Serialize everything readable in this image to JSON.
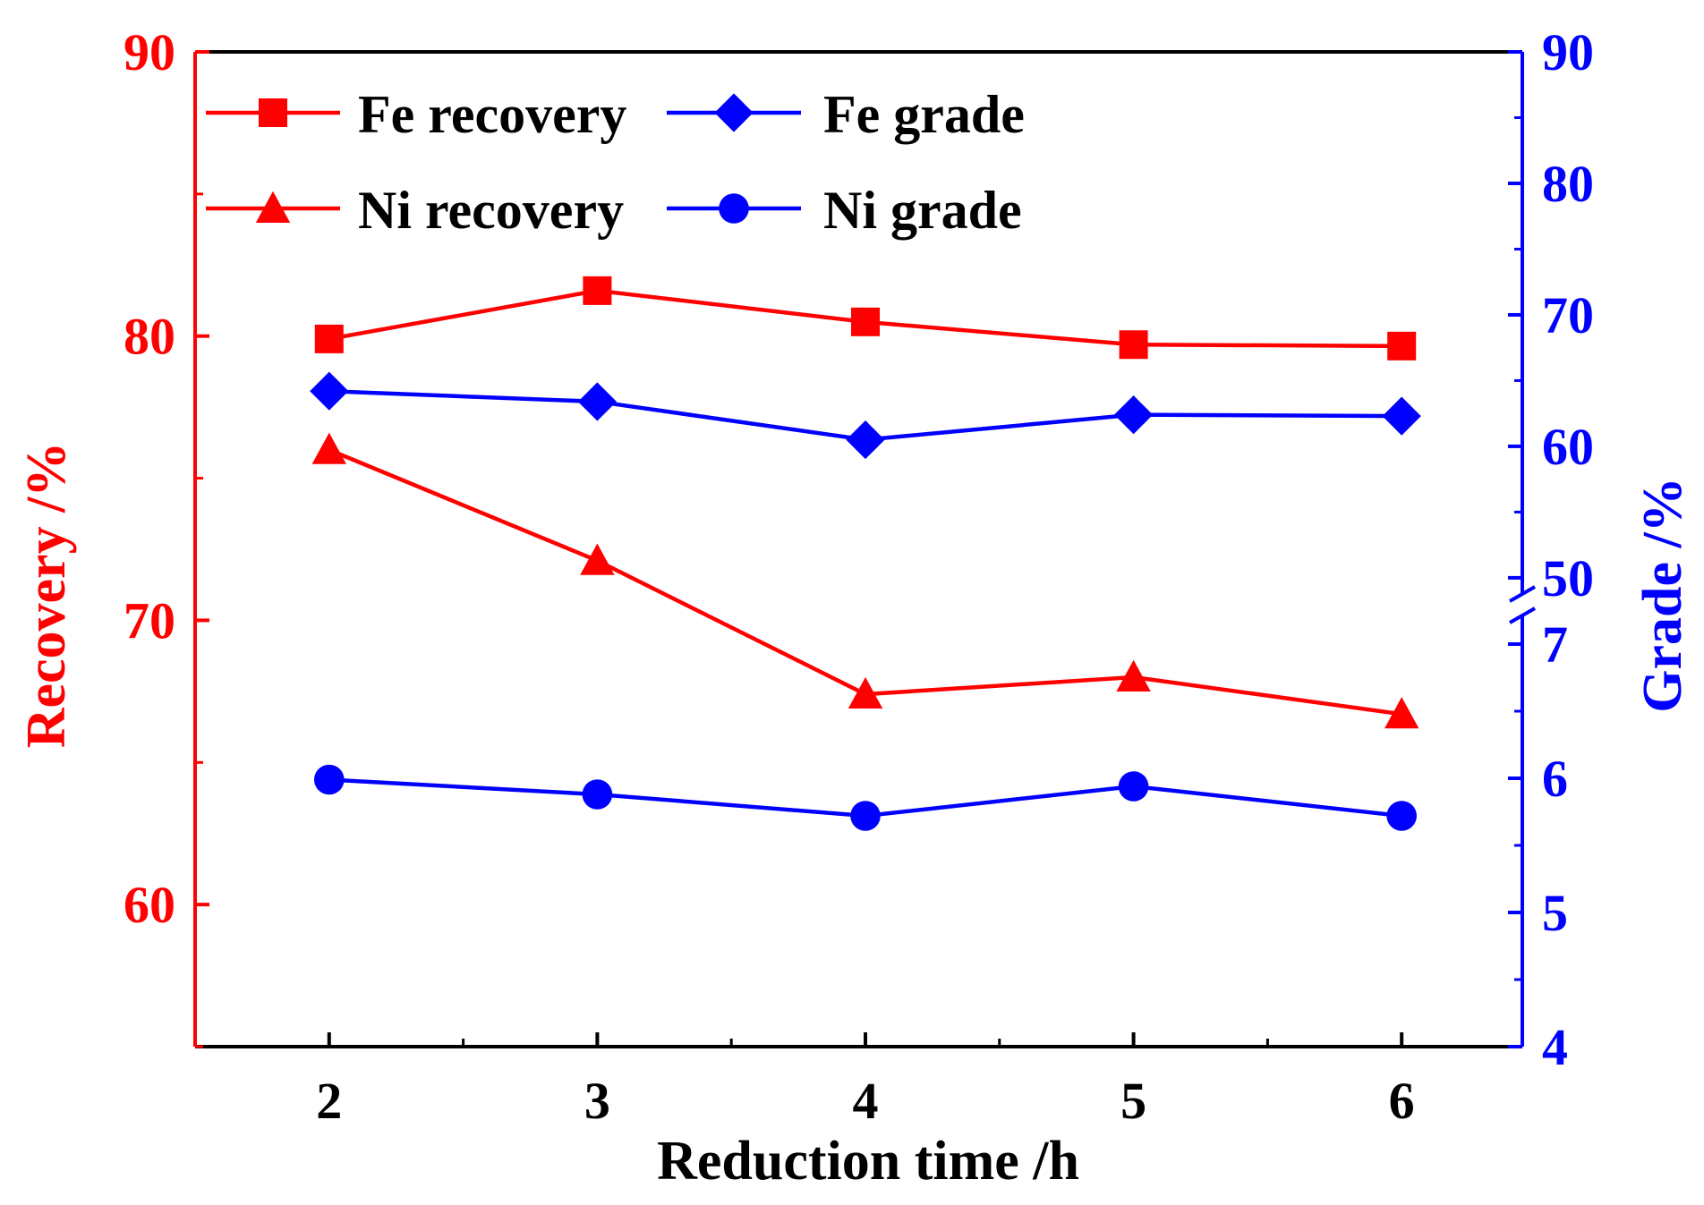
{
  "chart_data": {
    "type": "line",
    "x": [
      2,
      3,
      4,
      5,
      6
    ],
    "xlabel": "Reduction time /h",
    "xticks": [
      "2",
      "3",
      "4",
      "5",
      "6"
    ],
    "xlim": [
      1.5,
      6.45
    ],
    "left_axis": {
      "label": "Recovery  /%",
      "ylim": [
        55,
        90
      ],
      "ticks": [
        "60",
        "70",
        "80",
        "90"
      ],
      "color": "#ff0000"
    },
    "right_axis": {
      "label": "Grade /%",
      "color": "#0000ff",
      "broken": true,
      "upper_segment": {
        "ylim": [
          47,
          90
        ],
        "ticks": [
          "50",
          "60",
          "70",
          "80",
          "90"
        ]
      },
      "lower_segment": {
        "ylim": [
          4,
          7.5
        ],
        "ticks": [
          "4",
          "5",
          "6",
          "7"
        ]
      }
    },
    "series": [
      {
        "name": "Fe recovery",
        "axis": "left",
        "marker": "square",
        "color": "#ff0000",
        "values": [
          79.9,
          81.6,
          80.5,
          79.7,
          79.65
        ]
      },
      {
        "name": "Ni recovery",
        "axis": "left",
        "marker": "triangle",
        "color": "#ff0000",
        "values": [
          76.0,
          72.1,
          67.4,
          68.0,
          66.7
        ]
      },
      {
        "name": "Fe grade",
        "axis": "right-upper",
        "marker": "diamond",
        "color": "#0000ff",
        "values": [
          64.2,
          63.4,
          60.5,
          62.4,
          62.3
        ]
      },
      {
        "name": "Ni grade",
        "axis": "right-lower",
        "marker": "circle",
        "color": "#0000ff",
        "values": [
          5.99,
          5.88,
          5.72,
          5.94,
          5.72
        ]
      }
    ],
    "legend_position": "top-left"
  }
}
